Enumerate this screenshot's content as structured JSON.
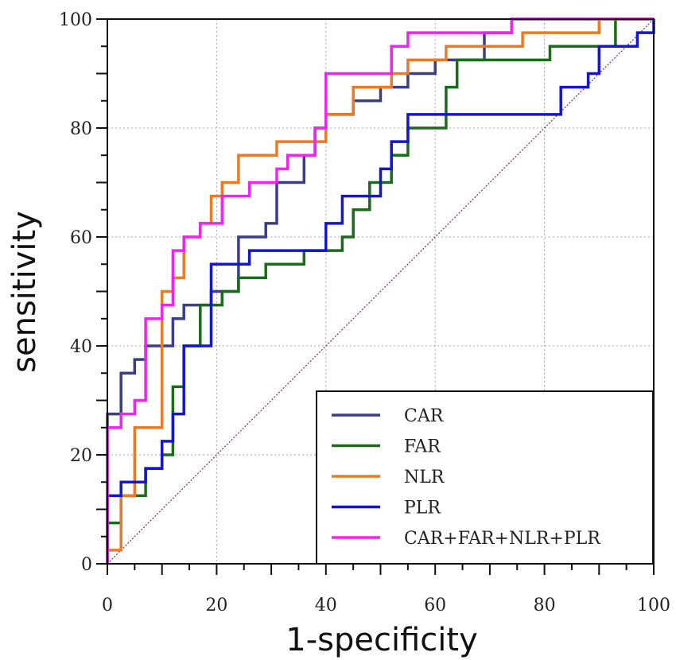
{
  "chart_data": {
    "type": "line",
    "title": "",
    "xlabel": "1-specificity",
    "ylabel": "sensitivity",
    "xlim": [
      0,
      100
    ],
    "ylim": [
      0,
      100
    ],
    "x_ticks": [
      "0",
      "20",
      "40",
      "60",
      "80",
      "100"
    ],
    "y_ticks": [
      "0",
      "20",
      "40",
      "60",
      "80",
      "100"
    ],
    "grid": true,
    "legend_position": "bottom-right",
    "reference_line": {
      "style": "dotted diagonal",
      "color": "#8b2a3c",
      "points": [
        [
          0,
          0
        ],
        [
          100,
          100
        ]
      ]
    },
    "series": [
      {
        "name": "CAR",
        "color": "#3a3e87",
        "points": [
          [
            0,
            0
          ],
          [
            0,
            27.5
          ],
          [
            2.5,
            27.5
          ],
          [
            2.5,
            35
          ],
          [
            5,
            35
          ],
          [
            5,
            37.5
          ],
          [
            7,
            37.5
          ],
          [
            7,
            40
          ],
          [
            12,
            40
          ],
          [
            12,
            45
          ],
          [
            14,
            45
          ],
          [
            14,
            47.5
          ],
          [
            19,
            47.5
          ],
          [
            19,
            50
          ],
          [
            24,
            50
          ],
          [
            24,
            60
          ],
          [
            29,
            60
          ],
          [
            29,
            62.5
          ],
          [
            31,
            62.5
          ],
          [
            31,
            70
          ],
          [
            36,
            70
          ],
          [
            36,
            75
          ],
          [
            38,
            75
          ],
          [
            38,
            80
          ],
          [
            40,
            80
          ],
          [
            40,
            82.5
          ],
          [
            45,
            82.5
          ],
          [
            45,
            85
          ],
          [
            50,
            85
          ],
          [
            50,
            87.5
          ],
          [
            55,
            87.5
          ],
          [
            55,
            90
          ],
          [
            60,
            90
          ],
          [
            60,
            92.5
          ],
          [
            69,
            92.5
          ],
          [
            69,
            97.5
          ],
          [
            74,
            97.5
          ],
          [
            74,
            100
          ],
          [
            100,
            100
          ]
        ]
      },
      {
        "name": "FAR",
        "color": "#1a6b1a",
        "points": [
          [
            0,
            0
          ],
          [
            0,
            7.5
          ],
          [
            2.5,
            7.5
          ],
          [
            2.5,
            12.5
          ],
          [
            7,
            12.5
          ],
          [
            7,
            17.5
          ],
          [
            10,
            17.5
          ],
          [
            10,
            20
          ],
          [
            12,
            20
          ],
          [
            12,
            32.5
          ],
          [
            14,
            32.5
          ],
          [
            14,
            40
          ],
          [
            17,
            40
          ],
          [
            17,
            47.5
          ],
          [
            21,
            47.5
          ],
          [
            21,
            50
          ],
          [
            24,
            50
          ],
          [
            24,
            52.5
          ],
          [
            29,
            52.5
          ],
          [
            29,
            55
          ],
          [
            36,
            55
          ],
          [
            36,
            57.5
          ],
          [
            43,
            57.5
          ],
          [
            43,
            60
          ],
          [
            45,
            60
          ],
          [
            45,
            65
          ],
          [
            48,
            65
          ],
          [
            48,
            70
          ],
          [
            52,
            70
          ],
          [
            52,
            75
          ],
          [
            55,
            75
          ],
          [
            55,
            80
          ],
          [
            62,
            80
          ],
          [
            62,
            87.5
          ],
          [
            64,
            87.5
          ],
          [
            64,
            92.5
          ],
          [
            81,
            92.5
          ],
          [
            81,
            95
          ],
          [
            93,
            95
          ],
          [
            93,
            100
          ],
          [
            100,
            100
          ]
        ]
      },
      {
        "name": "NLR",
        "color": "#ea7a26",
        "points": [
          [
            0,
            0
          ],
          [
            0,
            2.5
          ],
          [
            2.5,
            2.5
          ],
          [
            2.5,
            12.5
          ],
          [
            5,
            12.5
          ],
          [
            5,
            25
          ],
          [
            10,
            25
          ],
          [
            10,
            50
          ],
          [
            12,
            50
          ],
          [
            12,
            52.5
          ],
          [
            14,
            52.5
          ],
          [
            14,
            60
          ],
          [
            17,
            60
          ],
          [
            17,
            62.5
          ],
          [
            19,
            62.5
          ],
          [
            19,
            67.5
          ],
          [
            21,
            67.5
          ],
          [
            21,
            70
          ],
          [
            24,
            70
          ],
          [
            24,
            75
          ],
          [
            31,
            75
          ],
          [
            31,
            77.5
          ],
          [
            40,
            77.5
          ],
          [
            40,
            82.5
          ],
          [
            45,
            82.5
          ],
          [
            45,
            87.5
          ],
          [
            52,
            87.5
          ],
          [
            52,
            90
          ],
          [
            55,
            90
          ],
          [
            55,
            92.5
          ],
          [
            62,
            92.5
          ],
          [
            62,
            95
          ],
          [
            76,
            95
          ],
          [
            76,
            97.5
          ],
          [
            90,
            97.5
          ],
          [
            90,
            100
          ],
          [
            100,
            100
          ]
        ]
      },
      {
        "name": "PLR",
        "color": "#1515d0",
        "points": [
          [
            0,
            0
          ],
          [
            0,
            12.5
          ],
          [
            2.5,
            12.5
          ],
          [
            2.5,
            15
          ],
          [
            7,
            15
          ],
          [
            7,
            17.5
          ],
          [
            10,
            17.5
          ],
          [
            10,
            22.5
          ],
          [
            12,
            22.5
          ],
          [
            12,
            27.5
          ],
          [
            14,
            27.5
          ],
          [
            14,
            40
          ],
          [
            19,
            40
          ],
          [
            19,
            55
          ],
          [
            26,
            55
          ],
          [
            26,
            57.5
          ],
          [
            40,
            57.5
          ],
          [
            40,
            62.5
          ],
          [
            43,
            62.5
          ],
          [
            43,
            67.5
          ],
          [
            50,
            67.5
          ],
          [
            50,
            72.5
          ],
          [
            52,
            72.5
          ],
          [
            52,
            77.5
          ],
          [
            55,
            77.5
          ],
          [
            55,
            82.5
          ],
          [
            83,
            82.5
          ],
          [
            83,
            87.5
          ],
          [
            88,
            87.5
          ],
          [
            88,
            90
          ],
          [
            90,
            90
          ],
          [
            90,
            95
          ],
          [
            97,
            95
          ],
          [
            97,
            97.5
          ],
          [
            100,
            97.5
          ],
          [
            100,
            100
          ]
        ]
      },
      {
        "name": "CAR+FAR+NLR+PLR",
        "color": "#f024f0",
        "points": [
          [
            0,
            0
          ],
          [
            0,
            25
          ],
          [
            2.5,
            25
          ],
          [
            2.5,
            27.5
          ],
          [
            5,
            27.5
          ],
          [
            5,
            30
          ],
          [
            7,
            30
          ],
          [
            7,
            45
          ],
          [
            10,
            45
          ],
          [
            10,
            47.5
          ],
          [
            12,
            47.5
          ],
          [
            12,
            57.5
          ],
          [
            14,
            57.5
          ],
          [
            14,
            60
          ],
          [
            17,
            60
          ],
          [
            17,
            62.5
          ],
          [
            21,
            62.5
          ],
          [
            21,
            67.5
          ],
          [
            26,
            67.5
          ],
          [
            26,
            70
          ],
          [
            31,
            70
          ],
          [
            31,
            72.5
          ],
          [
            33,
            72.5
          ],
          [
            33,
            75
          ],
          [
            38,
            75
          ],
          [
            38,
            80
          ],
          [
            40,
            80
          ],
          [
            40,
            90
          ],
          [
            52,
            90
          ],
          [
            52,
            95
          ],
          [
            55,
            95
          ],
          [
            55,
            97.5
          ],
          [
            74,
            97.5
          ],
          [
            74,
            100
          ],
          [
            100,
            100
          ]
        ]
      }
    ]
  }
}
